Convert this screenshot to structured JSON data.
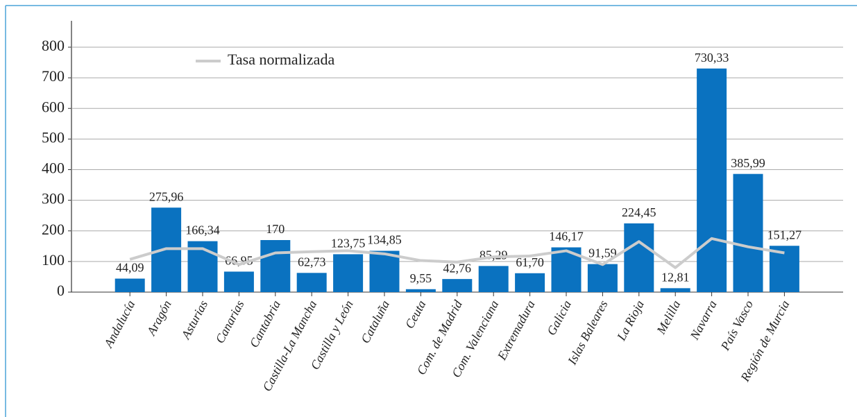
{
  "chart_data": {
    "type": "bar",
    "categories": [
      "Andalucía",
      "Aragón",
      "Asturias",
      "Canarias",
      "Cantabria",
      "Castilla-La Mancha",
      "Castilla y León",
      "Cataluña",
      "Ceuta",
      "Com. de Madrid",
      "Com. Valenciana",
      "Extremadura",
      "Galicia",
      "Islas Baleares",
      "La Rioja",
      "Melilla",
      "Navarra",
      "País Vasco",
      "Región de Murcia"
    ],
    "series": [
      {
        "type": "bar",
        "color": "#0a72c0",
        "values": [
          44.09,
          275.96,
          166.34,
          66.95,
          170,
          62.73,
          123.75,
          134.85,
          9.55,
          42.76,
          85.29,
          61.7,
          146.17,
          91.59,
          224.45,
          12.81,
          730.33,
          385.99,
          151.27
        ],
        "value_labels": [
          "44,09",
          "275,96",
          "166,34",
          "66,95",
          "170",
          "62,73",
          "123,75",
          "134,85",
          "9,55",
          "42,76",
          "85,29",
          "61,70",
          "146,17",
          "91,59",
          "224,45",
          "12,81",
          "730,33",
          "385,99",
          "151,27"
        ]
      },
      {
        "type": "line",
        "name": "Tasa normalizada",
        "color": "#cccccc",
        "values": [
          107,
          142,
          142,
          90,
          128,
          132,
          135,
          125,
          103,
          98,
          115,
          118,
          135,
          90,
          165,
          80,
          175,
          148,
          128
        ]
      }
    ],
    "ylim": [
      0,
      800
    ],
    "yticks": [
      0,
      100,
      200,
      300,
      400,
      500,
      600,
      700,
      800
    ],
    "grid": true,
    "legend": "top-left"
  }
}
